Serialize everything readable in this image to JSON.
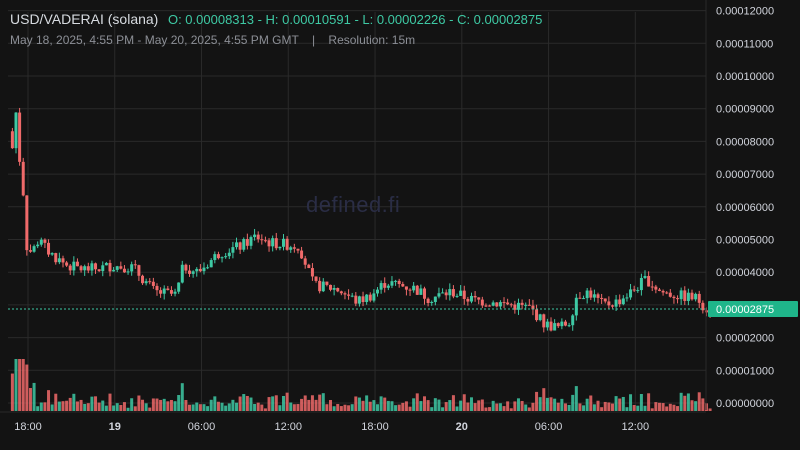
{
  "header": {
    "symbol": "USD/VADERAI (solana)",
    "ohlc": "O: 0.00008313 - H: 0.00010591 - L: 0.00002226 - C: 0.00002875",
    "range": "May 18, 2025, 4:55 PM - May 20, 2025, 4:55 PM GMT",
    "separator": "|",
    "resolution": "Resolution: 15m"
  },
  "watermark": "defined.fi",
  "colors": {
    "up": "#3ec9a4",
    "down": "#f06a6a",
    "grid": "#2a2a2a",
    "last_price_bg": "#1fb58a",
    "text": "#d1d4dc"
  },
  "chart_data": {
    "type": "candlestick",
    "last_price_label": "0.00002875",
    "y_ticks": [
      "0.00012000",
      "0.00011000",
      "0.00010000",
      "0.00009000",
      "0.00008000",
      "0.00007000",
      "0.00006000",
      "0.00005000",
      "0.00004000",
      "0.00003000",
      "0.00002000",
      "0.00001000",
      "0.00000000"
    ],
    "x_ticks": [
      "18:00",
      "19",
      "06:00",
      "12:00",
      "18:00",
      "20",
      "06:00",
      "12:00"
    ],
    "bold_x_ticks": [
      "19",
      "20"
    ],
    "ylim": [
      0,
      0.00012
    ],
    "ohlc_summary": {
      "open": 8.313e-05,
      "high": 0.00010591,
      "low": 2.226e-05,
      "close": 2.875e-05
    },
    "price_path": [
      {
        "h": 16.92,
        "p": 8.31e-05
      },
      {
        "h": 17.0,
        "p": 8e-05
      },
      {
        "h": 17.25,
        "p": 7.7e-05
      },
      {
        "h": 17.4,
        "p": 9e-05
      },
      {
        "h": 17.6,
        "p": 7.8e-05
      },
      {
        "h": 17.8,
        "p": 6.8e-05
      },
      {
        "h": 18.0,
        "p": 6.2e-05
      },
      {
        "h": 18.15,
        "p": 4.8e-05
      },
      {
        "h": 18.5,
        "p": 4.6e-05
      },
      {
        "h": 19.0,
        "p": 5e-05
      },
      {
        "h": 19.5,
        "p": 4.7e-05
      },
      {
        "h": 20.0,
        "p": 4.5e-05
      },
      {
        "h": 21.0,
        "p": 4.2e-05
      },
      {
        "h": 22.0,
        "p": 4.1e-05
      },
      {
        "h": 23.0,
        "p": 4.1e-05
      },
      {
        "h": 24.0,
        "p": 4.2e-05
      },
      {
        "h": 25.5,
        "p": 4.15e-05
      },
      {
        "h": 27.0,
        "p": 3.4e-05
      },
      {
        "h": 28.5,
        "p": 3.3e-05
      },
      {
        "h": 29.0,
        "p": 4.2e-05
      },
      {
        "h": 30.0,
        "p": 4e-05
      },
      {
        "h": 31.5,
        "p": 4.6e-05
      },
      {
        "h": 33.0,
        "p": 4.8e-05
      },
      {
        "h": 34.0,
        "p": 5.1e-05
      },
      {
        "h": 35.0,
        "p": 4.9e-05
      },
      {
        "h": 37.0,
        "p": 4.8e-05
      },
      {
        "h": 38.0,
        "p": 3.6e-05
      },
      {
        "h": 39.5,
        "p": 3.5e-05
      },
      {
        "h": 40.0,
        "p": 3.4e-05
      },
      {
        "h": 41.0,
        "p": 3.1e-05
      },
      {
        "h": 42.0,
        "p": 3.3e-05
      },
      {
        "h": 43.0,
        "p": 3.7e-05
      },
      {
        "h": 45.0,
        "p": 3.5e-05
      },
      {
        "h": 46.0,
        "p": 3.2e-05
      },
      {
        "h": 47.5,
        "p": 3.4e-05
      },
      {
        "h": 49.0,
        "p": 3.15e-05
      },
      {
        "h": 51.0,
        "p": 3.05e-05
      },
      {
        "h": 53.0,
        "p": 2.9e-05
      },
      {
        "h": 54.0,
        "p": 2.4e-05
      },
      {
        "h": 55.0,
        "p": 2.3e-05
      },
      {
        "h": 55.7,
        "p": 2.5e-05
      },
      {
        "h": 56.2,
        "p": 3.3e-05
      },
      {
        "h": 57.0,
        "p": 3.4e-05
      },
      {
        "h": 58.0,
        "p": 3e-05
      },
      {
        "h": 59.0,
        "p": 3.1e-05
      },
      {
        "h": 60.0,
        "p": 3.4e-05
      },
      {
        "h": 61.0,
        "p": 3.8e-05
      },
      {
        "h": 62.0,
        "p": 3.4e-05
      },
      {
        "h": 63.0,
        "p": 3.3e-05
      },
      {
        "h": 64.5,
        "p": 3.2e-05
      },
      {
        "h": 65.2,
        "p": 2.88e-05
      }
    ]
  }
}
